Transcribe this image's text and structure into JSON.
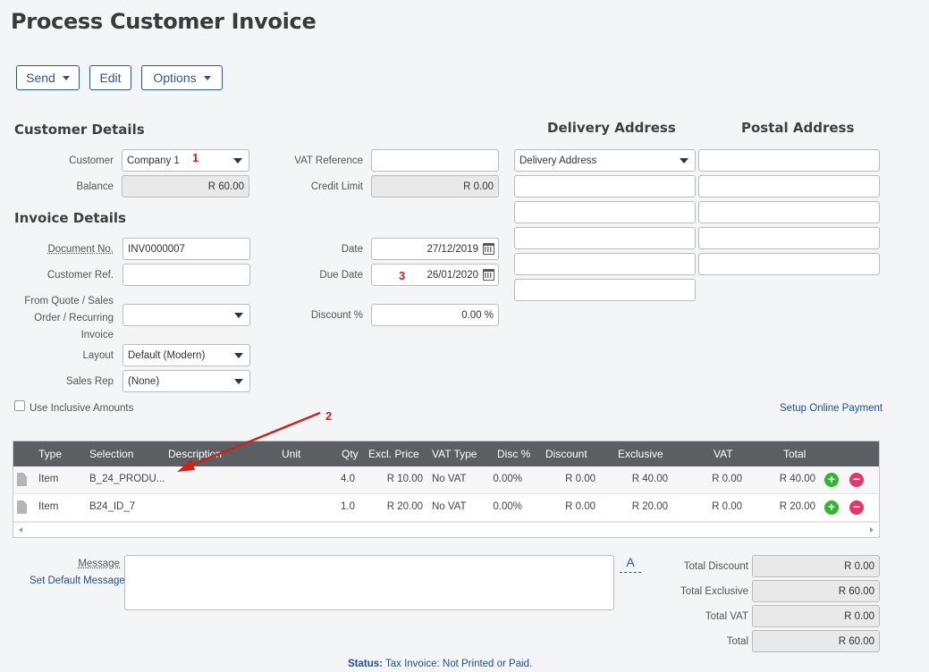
{
  "page": {
    "title": "Process Customer Invoice"
  },
  "toolbar": {
    "send_label": "Send",
    "edit_label": "Edit",
    "options_label": "Options"
  },
  "customer_details": {
    "heading": "Customer Details",
    "customer_label": "Customer",
    "customer_value": "Company 1",
    "balance_label": "Balance",
    "balance_value": "R 60.00",
    "vat_ref_label": "VAT Reference",
    "vat_ref_value": "",
    "credit_limit_label": "Credit Limit",
    "credit_limit_value": "R 0.00"
  },
  "invoice_details": {
    "heading": "Invoice Details",
    "doc_no_label": "Document No.",
    "doc_no_value": "INV0000007",
    "customer_ref_label": "Customer Ref.",
    "customer_ref_value": "",
    "from_quote_label_1": "From Quote / Sales",
    "from_quote_label_2": "Order / Recurring",
    "from_quote_label_3": "Invoice",
    "from_quote_value": "",
    "layout_label": "Layout",
    "layout_value": "Default (Modern)",
    "sales_rep_label": "Sales Rep",
    "sales_rep_value": "(None)",
    "date_label": "Date",
    "date_value": "27/12/2019",
    "due_date_label": "Due Date",
    "due_date_value": "26/01/2020",
    "discount_label": "Discount %",
    "discount_value": "0.00 %"
  },
  "addresses": {
    "delivery_heading": "Delivery Address",
    "postal_heading": "Postal Address",
    "delivery_select": "Delivery Address"
  },
  "options": {
    "inclusive_label": "Use Inclusive Amounts",
    "setup_payment_link": "Setup Online Payment"
  },
  "annotations": {
    "n1": "1",
    "n2": "2",
    "n3": "3"
  },
  "grid": {
    "columns": [
      "Type",
      "Selection",
      "Description",
      "Unit",
      "Qty",
      "Excl. Price",
      "VAT Type",
      "Disc %",
      "Discount",
      "Exclusive",
      "VAT",
      "Total"
    ],
    "rows": [
      {
        "type": "Item",
        "selection": "B_24_PRODU...",
        "description": "",
        "unit": "",
        "qty": "4.0",
        "price": "R 10.00",
        "vat_type": "No VAT",
        "disc_pct": "0.00%",
        "discount": "R 0.00",
        "exclusive": "R 40.00",
        "vat": "R 0.00",
        "total": "R 40.00"
      },
      {
        "type": "Item",
        "selection": "B24_ID_7",
        "description": "",
        "unit": "",
        "qty": "1.0",
        "price": "R 20.00",
        "vat_type": "No VAT",
        "disc_pct": "0.00%",
        "discount": "R 0.00",
        "exclusive": "R 20.00",
        "vat": "R 0.00",
        "total": "R 20.00"
      }
    ]
  },
  "footer": {
    "message_label": "Message",
    "set_default_link": "Set Default Message",
    "font_btn": "A",
    "total_discount_label": "Total Discount",
    "total_discount_value": "R 0.00",
    "total_exclusive_label": "Total Exclusive",
    "total_exclusive_value": "R 60.00",
    "total_vat_label": "Total VAT",
    "total_vat_value": "R 0.00",
    "total_label": "Total",
    "total_value": "R 60.00",
    "status_label": "Status:",
    "status_value": "Tax Invoice: Not Printed or Paid."
  },
  "colors": {
    "accent": "#2f5597",
    "header_bg": "#5b5f63",
    "annotation_red": "#d0201a",
    "add_green": "#2eb82e",
    "remove_pink": "#e8336d"
  }
}
